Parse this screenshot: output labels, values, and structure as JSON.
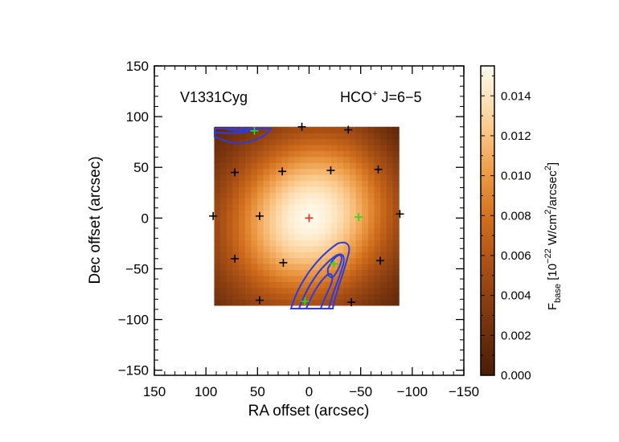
{
  "chart_data": {
    "type": "heatmap",
    "source_name": "V1331Cyg",
    "line_label": {
      "species": "HCO",
      "superscript": "+",
      "transition": " J=6−5"
    },
    "xlabel": "RA offset (arcsec)",
    "ylabel": "Dec offset (arcsec)",
    "xlim": [
      150,
      -150
    ],
    "ylim": [
      -155,
      150
    ],
    "xticks": [
      "150",
      "100",
      "50",
      "0",
      "−50",
      "−100",
      "−150"
    ],
    "xtick_values": [
      150,
      100,
      50,
      0,
      -50,
      -100,
      -150
    ],
    "yticks": [
      "150",
      "100",
      "50",
      "0",
      "−50",
      "−100",
      "−150"
    ],
    "ytick_values": [
      150,
      100,
      50,
      0,
      -50,
      -100,
      -150
    ],
    "map_extent": {
      "ra": [
        92,
        -87
      ],
      "dec": [
        -86,
        90
      ]
    },
    "peak_flux": 0.0143,
    "peak_position": {
      "ra": -3,
      "dec": 2
    },
    "colorbar": {
      "range": [
        0.0,
        0.0155
      ],
      "ticks": [
        "0.000",
        "0.002",
        "0.004",
        "0.006",
        "0.008",
        "0.010",
        "0.012",
        "0.014"
      ],
      "tick_values": [
        0.0,
        0.002,
        0.004,
        0.006,
        0.008,
        0.01,
        0.012,
        0.014
      ],
      "label_main": "F",
      "label_sub": "base",
      "label_rest_1": " [10",
      "label_exp": "−22",
      "label_rest_2": " W/cm",
      "label_exp2": "2",
      "label_rest_3": "/arcsec",
      "label_exp3": "2",
      "label_close": "]"
    },
    "markers_black": [
      {
        "ra": 93,
        "dec": 2
      },
      {
        "ra": 72,
        "dec": 45
      },
      {
        "ra": 48,
        "dec": 2
      },
      {
        "ra": 26,
        "dec": 46
      },
      {
        "ra": -21,
        "dec": 47
      },
      {
        "ra": -67,
        "dec": 48
      },
      {
        "ra": -88,
        "dec": 4
      },
      {
        "ra": 7,
        "dec": 90
      },
      {
        "ra": -38,
        "dec": 87
      },
      {
        "ra": 72,
        "dec": -40
      },
      {
        "ra": 25,
        "dec": -44
      },
      {
        "ra": -69,
        "dec": -42
      },
      {
        "ra": 48,
        "dec": -81
      },
      {
        "ra": -41,
        "dec": -83
      }
    ],
    "markers_green": [
      {
        "ra": -48,
        "dec": 1
      },
      {
        "ra": -24,
        "dec": -45
      },
      {
        "ra": 53,
        "dec": 86
      },
      {
        "ra": 4,
        "dec": -82
      }
    ],
    "marker_red": {
      "ra": 0,
      "dec": 0
    },
    "contour_color": "#2c3ce0",
    "colors": {
      "low": "#4a1c06",
      "mid": "#d06d1c",
      "high": "#fff9e6",
      "black_marker": "#000000",
      "green_marker": "#22dd22",
      "red_marker": "#e02a1a"
    }
  }
}
